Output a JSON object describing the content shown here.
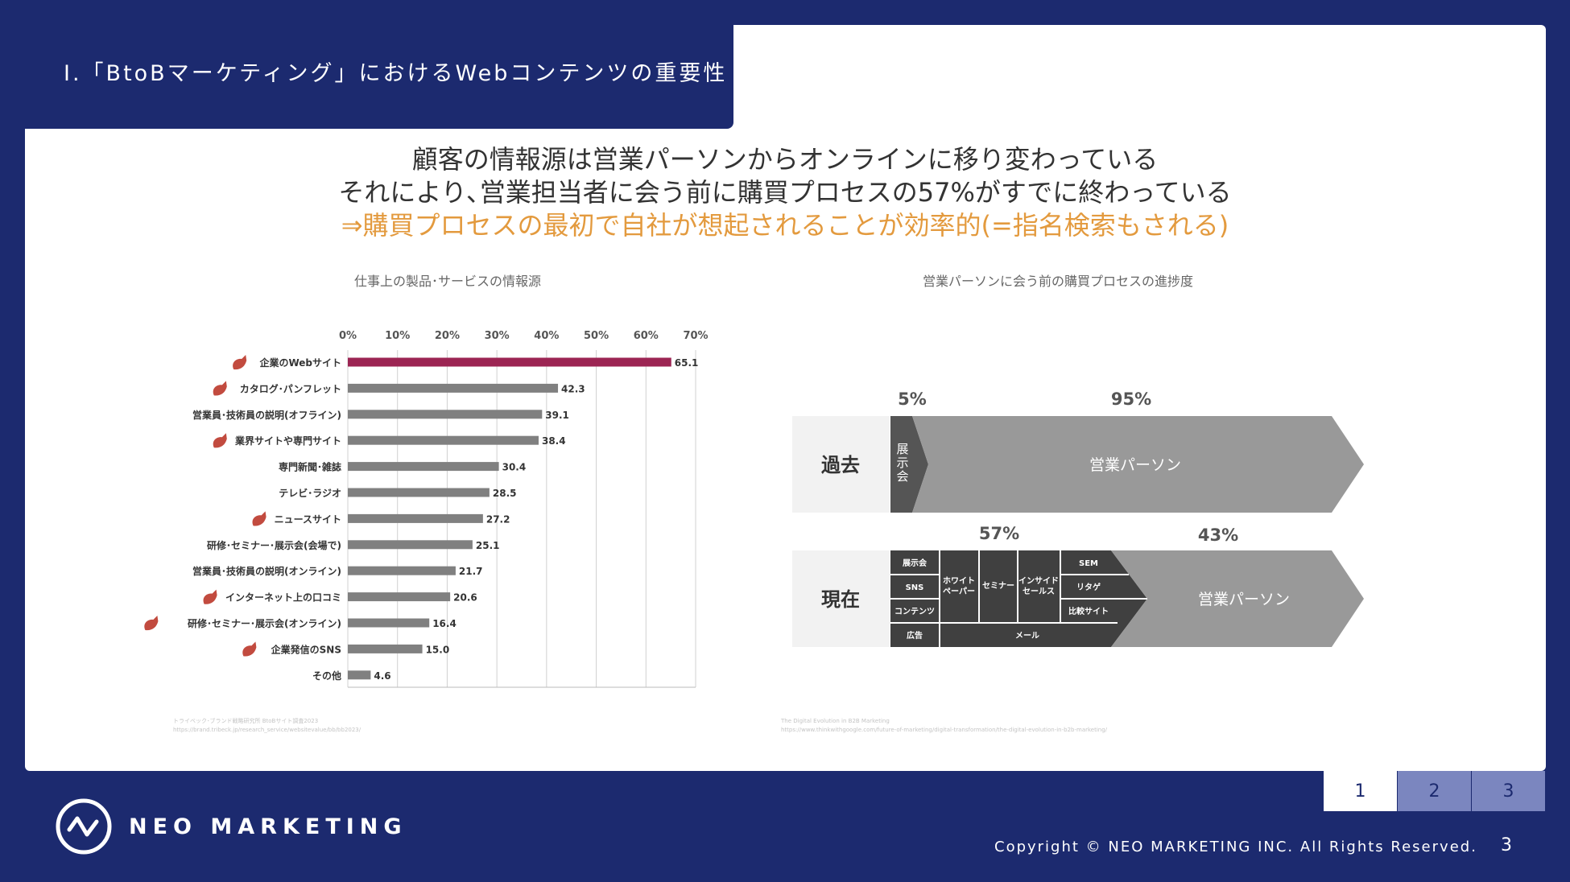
{
  "slide": {
    "section_title": "Ⅰ.「BtoBマーケティング」におけるWebコンテンツの重要性",
    "headline_lines": [
      "顧客の情報源は営業パーソンからオンラインに移り変わっている",
      "それにより､営業担当者に会う前に購買プロセスの57%がすでに終わっている",
      "⇒購買プロセスの最初で自社が想起されることが効率的(=指名検索もされる)"
    ],
    "accent_color": "#e39a3e",
    "navy_color": "#1c2a6f"
  },
  "chart_data": [
    {
      "type": "bar",
      "orientation": "horizontal",
      "title": "仕事上の製品･サービスの情報源",
      "categories": [
        "企業のWebサイト",
        "カタログ･パンフレット",
        "営業員･技術員の説明(オフライン)",
        "業界サイトや専門サイト",
        "専門新聞･雑誌",
        "テレビ･ラジオ",
        "ニュースサイト",
        "研修･セミナー･展示会(会場で)",
        "営業員･技術員の説明(オンライン)",
        "インターネット上の口コミ",
        "研修･セミナー･展示会(オンライン)",
        "企業発信のSNS",
        "その他"
      ],
      "values": [
        65.1,
        42.3,
        39.1,
        38.4,
        30.4,
        28.5,
        27.2,
        25.1,
        21.7,
        20.6,
        16.4,
        15.0,
        4.6
      ],
      "value_labels": [
        "65.1",
        "42.3",
        "39.1",
        "38.4",
        "30.4",
        "28.5",
        "27.2",
        "25.1",
        "21.7",
        "20.6",
        "16.4",
        "15.0",
        "4.6"
      ],
      "online_marked": [
        true,
        true,
        false,
        true,
        false,
        false,
        true,
        false,
        false,
        true,
        true,
        true,
        false
      ],
      "highlight_index": 0,
      "highlight_color": "#9c2553",
      "bar_color": "#808080",
      "xlim": [
        0,
        70
      ],
      "xticks": [
        0,
        10,
        20,
        30,
        40,
        50,
        60,
        70
      ],
      "xtick_labels": [
        "0%",
        "10%",
        "20%",
        "30%",
        "40%",
        "50%",
        "60%",
        "70%"
      ],
      "grid": true,
      "source_lines": [
        "トライベック･ブランド戦略研究所 BtoBサイト調査2023",
        "https://brand.tribeck.jp/research_service/websitevalue/bb/bb2023/"
      ]
    },
    {
      "type": "diagram",
      "title": "営業パーソンに会う前の購買プロセスの進捗度",
      "rows": [
        {
          "label": "過去",
          "online_pct": 5,
          "online_pct_label": "5%",
          "sales_pct": 95,
          "sales_pct_label": "95%",
          "online_text": "展示会",
          "sales_text": "営業パーソン"
        },
        {
          "label": "現在",
          "online_pct": 57,
          "online_pct_label": "57%",
          "sales_pct": 43,
          "sales_pct_label": "43%",
          "sales_text": "営業パーソン",
          "cells": [
            "展示会",
            "SNS",
            "コンテンツ",
            "広告",
            "ホワイトペーパー",
            "セミナー",
            "インサイドセールス",
            "SEM",
            "リタゲ",
            "比較サイト",
            "メール"
          ],
          "white_paper_lines": [
            "ホワイト",
            "ペーパー"
          ],
          "inside_sales_lines": [
            "インサイド",
            "セールス"
          ]
        }
      ],
      "source_lines": [
        "The Digital Evolution in B2B Marketing",
        "https://www.thinkwithgoogle.com/future-of-marketing/digital-transformation/the-digital-evolution-in-b2b-marketing/"
      ]
    }
  ],
  "pager": {
    "pages": [
      "1",
      "2",
      "3"
    ],
    "active": "1"
  },
  "footer": {
    "brand": "NEO MARKETING",
    "copyright": "Copyright © NEO MARKETING INC. All  Rights Reserved.",
    "page_number": "3"
  }
}
